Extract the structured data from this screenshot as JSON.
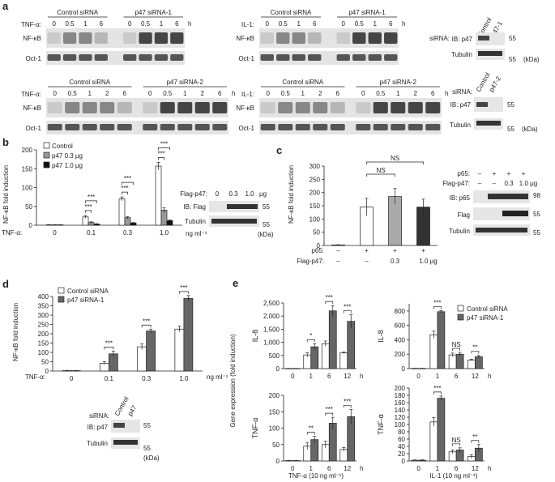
{
  "panel_a": {
    "letter": "a",
    "unit_h": "h",
    "blots": [
      {
        "treat": "TNF-α:",
        "group1": "Control siRNA",
        "group2": "p47 siRNA-1",
        "times": [
          "0",
          "0.5",
          "1",
          "6",
          "0",
          "0.5",
          "1",
          "6"
        ],
        "row1": "NF-κB",
        "row2": "Oct-1"
      },
      {
        "treat": "IL-1:",
        "group1": "Control siRNA",
        "group2": "p47 siRNA-1",
        "times": [
          "0",
          "0.5",
          "1",
          "6",
          "0",
          "0.5",
          "1",
          "6"
        ],
        "row1": "NF-κB",
        "row2": "Oct-1"
      },
      {
        "treat": "TNF-α:",
        "group1": "Control siRNA",
        "group2": "p47 siRNA-2",
        "times": [
          "0",
          "0.5",
          "1",
          "2",
          "6",
          "0",
          "0.5",
          "1",
          "2",
          "6"
        ],
        "row1": "NF-κB",
        "row2": "Oct-1"
      },
      {
        "treat": "IL-1:",
        "group1": "Control siRNA",
        "group2": "p47 siRNA-2",
        "times": [
          "0",
          "0.5",
          "1",
          "2",
          "6",
          "0",
          "0.5",
          "1",
          "2",
          "6"
        ],
        "row1": "NF-κB",
        "row2": "Oct-1"
      }
    ],
    "ib1": {
      "sirna": "siRNA:",
      "c1": "Control",
      "c2": "p47-1",
      "row1": "IB: p47",
      "row2": "Tubulin",
      "m1": "55",
      "m2": "55",
      "kda": "(kDa)"
    },
    "ib2": {
      "sirna": "siRNA:",
      "c1": "Control",
      "c2": "p47-2",
      "row1": "IB: p47",
      "row2": "Tubulin",
      "m1": "55",
      "m2": "55",
      "kda": "(kDa)"
    }
  },
  "panel_b": {
    "letter": "b",
    "ylabel": "NF-κB fold induction",
    "treat": "TNF-α:",
    "unit": "ng ml⁻¹",
    "inset": {
      "label": "Flag-p47:",
      "doses": [
        "0",
        "0.3",
        "1.0"
      ],
      "unit": "μg",
      "row1": "IB: Flag",
      "row2": "Tubulin",
      "m1": "55",
      "m2": "55",
      "kda": "(kDa)"
    }
  },
  "panel_c": {
    "letter": "c",
    "ylabel": "NF-κB fold induction",
    "row1_label": "p65:",
    "row1": [
      "–",
      "+",
      "+",
      "+"
    ],
    "row2_label": "Flag-p47:",
    "row2": [
      "–",
      "–",
      "0.3",
      "1.0 μg"
    ],
    "sig": [
      "NS",
      "NS"
    ],
    "inset": {
      "p65": "p65:",
      "flag": "Flag-p47:",
      "p65_vals": [
        "–",
        "+",
        "+",
        "+"
      ],
      "flag_vals": [
        "–",
        "–",
        "0.3",
        "1.0 μg"
      ],
      "row1": "IB: p65",
      "row2": "Flag",
      "row3": "Tubulin",
      "m1": "98",
      "m2": "55",
      "m3": "55"
    }
  },
  "panel_d": {
    "letter": "d",
    "ylabel": "NF-κB fold induction",
    "treat": "TNF-α:",
    "unit": "ng ml⁻¹",
    "inset": {
      "sirna": "siRNA:",
      "c1": "Control",
      "c2": "p47",
      "row1": "IB: p47",
      "row2": "Tubulin",
      "m1": "55",
      "m2": "55",
      "kda": "(kDa)"
    }
  },
  "panel_e": {
    "letter": "e",
    "ylabel_shared": "Gene expression (fold induction)",
    "xlabel_left": "TNF-α (10 ng ml⁻¹)",
    "xlabel_right": "IL-1 (10 ng ml⁻¹)"
  },
  "chart_data": [
    {
      "id": "b",
      "type": "bar",
      "categories": [
        "0",
        "0.1",
        "0.3",
        "1.0"
      ],
      "ylim": [
        0,
        200
      ],
      "yticks": [
        0,
        50,
        100,
        150,
        200
      ],
      "legend_placement": "top-left",
      "series": [
        {
          "name": "Control",
          "color": "#ffffff",
          "values": [
            1,
            22,
            70,
            157
          ],
          "err": [
            0.5,
            4,
            5,
            10
          ]
        },
        {
          "name": "p47 0.3 μg",
          "color": "#999999",
          "values": [
            1,
            7,
            20,
            40
          ],
          "err": [
            0.3,
            2,
            3,
            6
          ]
        },
        {
          "name": "p47 1.0 μg",
          "color": "#111111",
          "values": [
            1,
            3,
            6,
            12
          ],
          "err": [
            0.2,
            1,
            1,
            2
          ]
        }
      ],
      "sig": [
        {
          "cat": 1,
          "labels": [
            "***",
            "***"
          ]
        },
        {
          "cat": 2,
          "labels": [
            "***",
            "***"
          ]
        },
        {
          "cat": 3,
          "labels": [
            "***",
            "***"
          ]
        }
      ]
    },
    {
      "id": "c",
      "type": "bar",
      "categories": [
        "1",
        "2",
        "3",
        "4"
      ],
      "ylim": [
        0,
        300
      ],
      "yticks": [
        0,
        50,
        100,
        150,
        200,
        250,
        300
      ],
      "series": [
        {
          "name": "",
          "values": [
            2,
            145,
            185,
            145
          ],
          "err": [
            1,
            33,
            30,
            30
          ],
          "colors": [
            "#ffffff",
            "#ffffff",
            "#aaaaaa",
            "#333333"
          ]
        }
      ]
    },
    {
      "id": "d",
      "type": "bar",
      "categories": [
        "0",
        "0.1",
        "0.3",
        "1.0"
      ],
      "ylim": [
        0,
        400
      ],
      "yticks": [
        0,
        50,
        100,
        150,
        200,
        250,
        300,
        350,
        400
      ],
      "legend_placement": "top-left",
      "series": [
        {
          "name": "Control siRNA",
          "color": "#ffffff",
          "values": [
            2,
            42,
            130,
            225
          ],
          "err": [
            1,
            8,
            15,
            15
          ]
        },
        {
          "name": "p47 siRNA-1",
          "color": "#666666",
          "values": [
            2,
            92,
            215,
            390
          ],
          "err": [
            1,
            15,
            10,
            15
          ]
        }
      ],
      "sig": [
        "***",
        "***",
        "***"
      ]
    },
    {
      "id": "e1",
      "type": "bar",
      "ylabel": "IL-8",
      "categories": [
        "0",
        "1",
        "6",
        "12"
      ],
      "unit": "h",
      "ylim": [
        0,
        2500
      ],
      "yticks": [
        0,
        500,
        1000,
        1500,
        2000,
        2500
      ],
      "yticklabels": [
        "0",
        "500",
        "1,000",
        "1,500",
        "2,000",
        "2,500"
      ],
      "series": [
        {
          "name": "Control siRNA",
          "color": "#ffffff",
          "values": [
            5,
            520,
            950,
            600
          ],
          "err": [
            2,
            80,
            100,
            30
          ]
        },
        {
          "name": "p47 siRNA-1",
          "color": "#666666",
          "values": [
            5,
            830,
            2200,
            1800
          ],
          "err": [
            2,
            120,
            200,
            250
          ]
        }
      ],
      "sig": [
        "",
        "*",
        "***",
        "***"
      ]
    },
    {
      "id": "e2",
      "type": "bar",
      "ylabel": "IL-8",
      "categories": [
        "0",
        "1",
        "6",
        "12"
      ],
      "unit": "h",
      "ylim": [
        0,
        900
      ],
      "yticks": [
        0,
        200,
        400,
        600,
        800
      ],
      "legend_placement": "top-right",
      "series": [
        {
          "name": "Control siRNA",
          "color": "#ffffff",
          "values": [
            3,
            470,
            190,
            120
          ],
          "err": [
            1,
            50,
            25,
            10
          ]
        },
        {
          "name": "p47 siRNA-1",
          "color": "#666666",
          "values": [
            3,
            790,
            200,
            165
          ],
          "err": [
            1,
            15,
            25,
            20
          ]
        }
      ],
      "sig": [
        "",
        "***",
        "NS",
        "**"
      ]
    },
    {
      "id": "e3",
      "type": "bar",
      "ylabel": "TNF-α",
      "categories": [
        "0",
        "1",
        "6",
        "12"
      ],
      "unit": "h",
      "ylim": [
        0,
        200
      ],
      "yticks": [
        0,
        50,
        100,
        150,
        200
      ],
      "series": [
        {
          "name": "Control siRNA",
          "color": "#ffffff",
          "values": [
            1,
            45,
            50,
            35
          ],
          "err": [
            0.5,
            10,
            10,
            6
          ]
        },
        {
          "name": "p47 siRNA-1",
          "color": "#666666",
          "values": [
            1,
            65,
            115,
            135
          ],
          "err": [
            0.5,
            10,
            18,
            22
          ]
        }
      ],
      "sig": [
        "",
        "**",
        "***",
        "***"
      ]
    },
    {
      "id": "e4",
      "type": "bar",
      "ylabel": "TNF-α",
      "categories": [
        "0",
        "1",
        "6",
        "12"
      ],
      "unit": "h",
      "ylim": [
        0,
        200
      ],
      "yticks": [
        0,
        20,
        40,
        60,
        80,
        100,
        120,
        140,
        160,
        180,
        200
      ],
      "series": [
        {
          "name": "Control siRNA",
          "color": "#ffffff",
          "values": [
            2,
            107,
            25,
            12
          ],
          "err": [
            1,
            12,
            5,
            5
          ]
        },
        {
          "name": "p47 siRNA-1",
          "color": "#666666",
          "values": [
            2,
            172,
            30,
            35
          ],
          "err": [
            1,
            6,
            6,
            10
          ]
        }
      ],
      "sig": [
        "",
        "***",
        "NS",
        "**"
      ]
    }
  ]
}
